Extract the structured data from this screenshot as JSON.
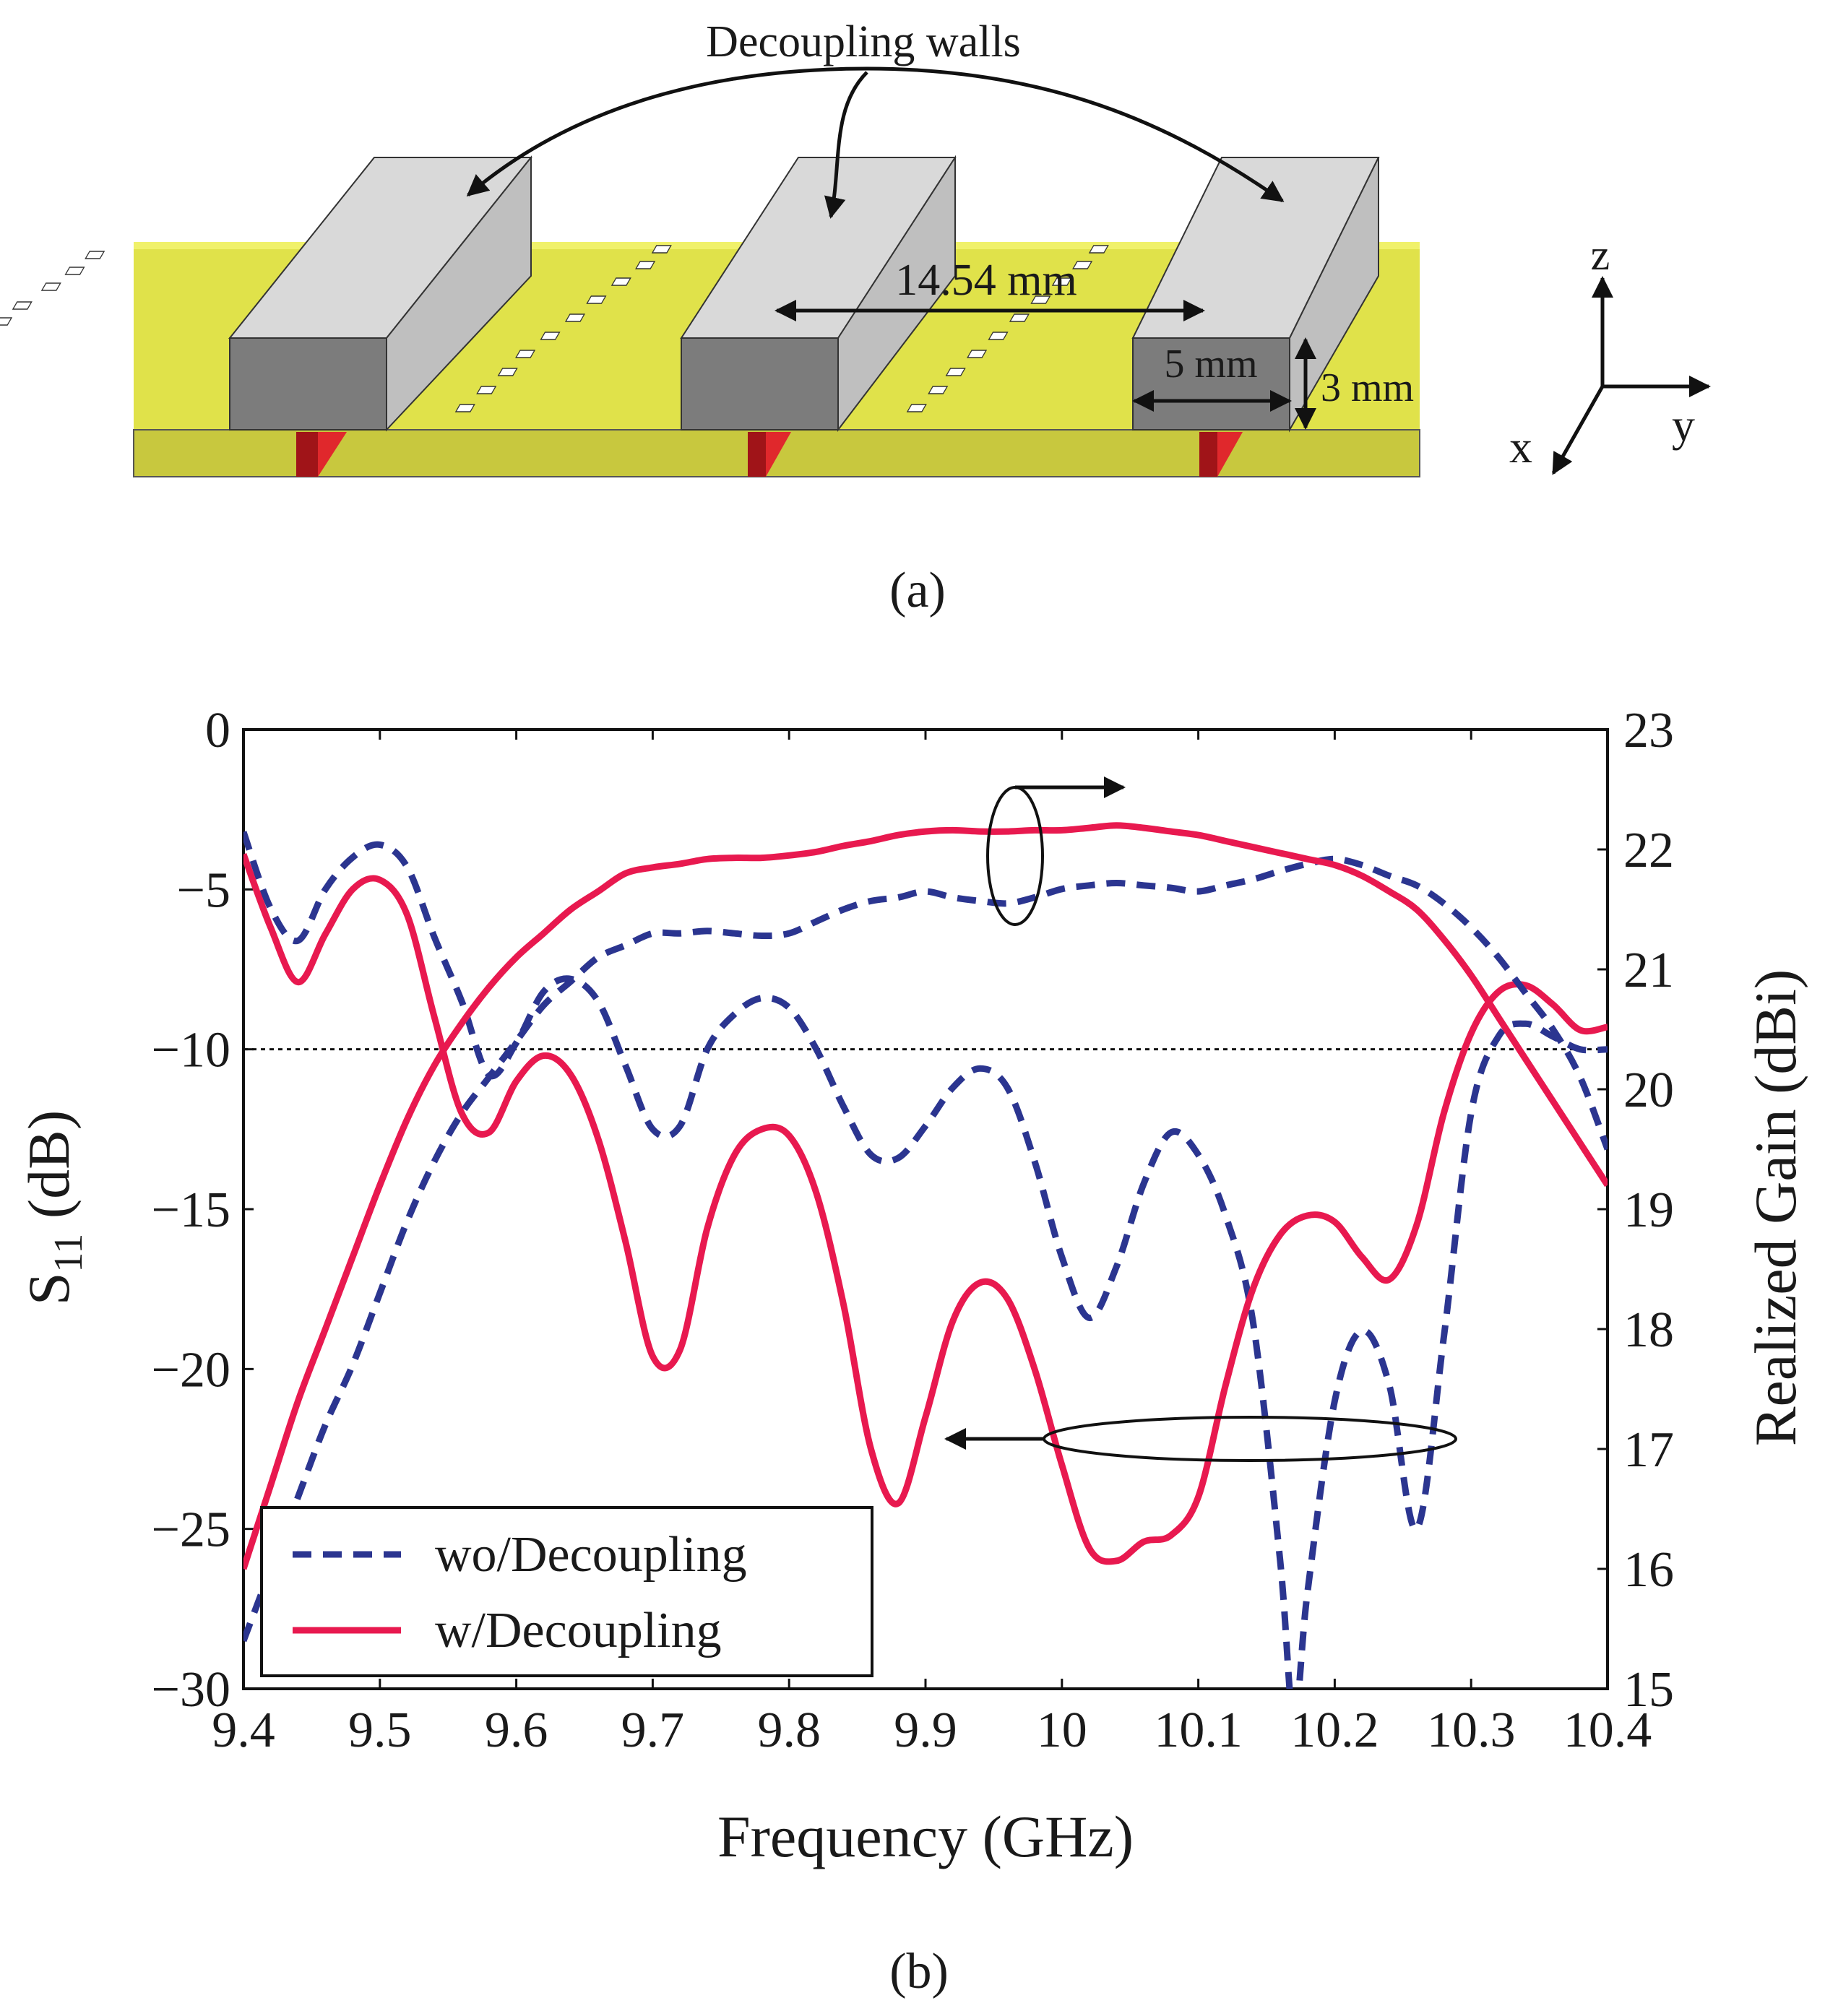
{
  "panel_a": {
    "callout_label": "Decoupling walls",
    "pitch_label": "14.54 mm",
    "width_label": "5 mm",
    "height_label": "3 mm",
    "axis_z": "z",
    "axis_y": "y",
    "axis_x": "x",
    "caption": "(a)",
    "colors": {
      "substrate": "#e0e24a",
      "wall_front": "#7c7c7c",
      "wall_top": "#d9d9d9",
      "feed": "#d8202a"
    }
  },
  "panel_b": {
    "caption": "(b)",
    "threshold_value": -10
  },
  "chart_data": {
    "type": "line",
    "title": "",
    "xlabel": "Frequency (GHz)",
    "ylabel_left_main": "S",
    "ylabel_left_sub": "11",
    "ylabel_left_unit": " (dB)",
    "ylabel_right": "Realized Gain (dBi)",
    "xlim": [
      9.4,
      10.4
    ],
    "ylim_left": [
      -30,
      0
    ],
    "ylim_right": [
      15,
      23
    ],
    "x_ticks": [
      9.4,
      9.5,
      9.6,
      9.7,
      9.8,
      9.9,
      10,
      10.1,
      10.2,
      10.3,
      10.4
    ],
    "x_tick_labels": [
      "9.4",
      "9.5",
      "9.6",
      "9.7",
      "9.8",
      "9.9",
      "10",
      "10.1",
      "10.2",
      "10.3",
      "10.4"
    ],
    "y_left_ticks": [
      0,
      -5,
      -10,
      -15,
      -20,
      -25,
      -30
    ],
    "y_left_tick_labels": [
      "0",
      "−5",
      "−10",
      "−15",
      "−20",
      "−25",
      "−30"
    ],
    "y_right_ticks": [
      23,
      22,
      21,
      20,
      19,
      18,
      17,
      16,
      15
    ],
    "y_right_tick_labels": [
      "23",
      "22",
      "21",
      "20",
      "19",
      "18",
      "17",
      "16",
      "15"
    ],
    "legend": [
      "wo/Decoupling",
      "w/Decoupling"
    ],
    "legend_position": "bottom-left",
    "series": [
      {
        "name": "wo/Decoupling S11",
        "axis": "left",
        "style": "dashed",
        "color": "#2b3590",
        "x": [
          9.4,
          9.42,
          9.44,
          9.46,
          9.48,
          9.5,
          9.52,
          9.54,
          9.56,
          9.58,
          9.6,
          9.62,
          9.64,
          9.66,
          9.68,
          9.7,
          9.72,
          9.74,
          9.76,
          9.78,
          9.8,
          9.82,
          9.84,
          9.86,
          9.88,
          9.9,
          9.92,
          9.94,
          9.96,
          9.98,
          10.0,
          10.02,
          10.04,
          10.06,
          10.08,
          10.1,
          10.12,
          10.14,
          10.16,
          10.17,
          10.18,
          10.2,
          10.22,
          10.24,
          10.26,
          10.28,
          10.3,
          10.32,
          10.34,
          10.36,
          10.38,
          10.4
        ],
        "y": [
          -3.2,
          -5.6,
          -6.6,
          -5.0,
          -4.0,
          -3.6,
          -4.3,
          -6.5,
          -8.5,
          -10.8,
          -9.8,
          -8.2,
          -7.8,
          -8.5,
          -10.5,
          -12.5,
          -12.4,
          -10.0,
          -8.9,
          -8.4,
          -8.7,
          -10.0,
          -11.8,
          -13.3,
          -13.4,
          -12.4,
          -11.2,
          -10.6,
          -11.2,
          -13.5,
          -16.5,
          -18.4,
          -16.8,
          -14.2,
          -12.6,
          -13.3,
          -15.2,
          -18.5,
          -26.0,
          -31.0,
          -27.0,
          -21.0,
          -18.8,
          -20.5,
          -25.0,
          -19.0,
          -12.0,
          -9.6,
          -9.2,
          -9.6,
          -10.0,
          -10.0
        ]
      },
      {
        "name": "w/Decoupling S11",
        "axis": "left",
        "style": "solid",
        "color": "#e8194f",
        "x": [
          9.4,
          9.42,
          9.44,
          9.46,
          9.48,
          9.5,
          9.52,
          9.54,
          9.56,
          9.58,
          9.6,
          9.62,
          9.64,
          9.66,
          9.68,
          9.7,
          9.72,
          9.74,
          9.76,
          9.78,
          9.8,
          9.82,
          9.84,
          9.86,
          9.88,
          9.9,
          9.92,
          9.94,
          9.96,
          9.98,
          10.0,
          10.02,
          10.04,
          10.06,
          10.08,
          10.1,
          10.12,
          10.14,
          10.16,
          10.18,
          10.2,
          10.22,
          10.24,
          10.26,
          10.28,
          10.3,
          10.32,
          10.34,
          10.36,
          10.38,
          10.4
        ],
        "y": [
          -3.9,
          -6.2,
          -7.9,
          -6.4,
          -5.0,
          -4.7,
          -5.8,
          -9.0,
          -12.0,
          -12.6,
          -11.0,
          -10.2,
          -10.8,
          -12.8,
          -16.0,
          -19.6,
          -19.4,
          -15.6,
          -13.3,
          -12.5,
          -12.7,
          -14.5,
          -18.0,
          -22.5,
          -24.2,
          -21.5,
          -18.5,
          -17.3,
          -17.8,
          -20.0,
          -23.0,
          -25.6,
          -26.0,
          -25.4,
          -25.2,
          -24.0,
          -20.5,
          -17.5,
          -15.8,
          -15.2,
          -15.4,
          -16.5,
          -17.2,
          -15.5,
          -12.0,
          -9.5,
          -8.2,
          -8.0,
          -8.6,
          -9.4,
          -9.3
        ]
      },
      {
        "name": "wo/Decoupling Gain",
        "axis": "right",
        "style": "dashed",
        "color": "#2b3590",
        "x": [
          9.4,
          9.42,
          9.44,
          9.46,
          9.48,
          9.5,
          9.52,
          9.54,
          9.56,
          9.58,
          9.6,
          9.62,
          9.64,
          9.66,
          9.68,
          9.7,
          9.72,
          9.74,
          9.76,
          9.78,
          9.8,
          9.82,
          9.84,
          9.86,
          9.88,
          9.9,
          9.92,
          9.94,
          9.96,
          9.98,
          10.0,
          10.02,
          10.04,
          10.06,
          10.08,
          10.1,
          10.12,
          10.14,
          10.16,
          10.18,
          10.2,
          10.22,
          10.24,
          10.26,
          10.28,
          10.3,
          10.32,
          10.34,
          10.36,
          10.38,
          10.4
        ],
        "y": [
          15.4,
          16.0,
          16.6,
          17.2,
          17.7,
          18.3,
          18.9,
          19.4,
          19.8,
          20.1,
          20.4,
          20.7,
          20.9,
          21.1,
          21.2,
          21.3,
          21.3,
          21.32,
          21.3,
          21.28,
          21.3,
          21.4,
          21.5,
          21.57,
          21.6,
          21.65,
          21.6,
          21.57,
          21.55,
          21.6,
          21.67,
          21.7,
          21.72,
          21.7,
          21.68,
          21.65,
          21.7,
          21.75,
          21.82,
          21.88,
          21.92,
          21.87,
          21.78,
          21.7,
          21.55,
          21.35,
          21.1,
          20.8,
          20.5,
          20.1,
          19.5
        ]
      },
      {
        "name": "w/Decoupling Gain",
        "axis": "right",
        "style": "solid",
        "color": "#e8194f",
        "x": [
          9.4,
          9.42,
          9.44,
          9.46,
          9.48,
          9.5,
          9.52,
          9.54,
          9.56,
          9.58,
          9.6,
          9.62,
          9.64,
          9.66,
          9.68,
          9.7,
          9.72,
          9.74,
          9.76,
          9.78,
          9.8,
          9.82,
          9.84,
          9.86,
          9.88,
          9.9,
          9.92,
          9.94,
          9.96,
          9.98,
          10.0,
          10.02,
          10.04,
          10.06,
          10.08,
          10.1,
          10.12,
          10.14,
          10.16,
          10.18,
          10.2,
          10.22,
          10.24,
          10.26,
          10.28,
          10.3,
          10.32,
          10.34,
          10.36,
          10.38,
          10.4
        ],
        "y": [
          16.0,
          16.7,
          17.4,
          18.0,
          18.6,
          19.2,
          19.75,
          20.2,
          20.55,
          20.85,
          21.1,
          21.3,
          21.5,
          21.65,
          21.8,
          21.85,
          21.88,
          21.92,
          21.93,
          21.93,
          21.95,
          21.98,
          22.03,
          22.07,
          22.12,
          22.15,
          22.16,
          22.15,
          22.15,
          22.16,
          22.16,
          22.18,
          22.2,
          22.18,
          22.15,
          22.12,
          22.07,
          22.02,
          21.97,
          21.92,
          21.87,
          21.78,
          21.65,
          21.5,
          21.25,
          20.95,
          20.6,
          20.25,
          19.9,
          19.55,
          19.2
        ]
      }
    ]
  }
}
